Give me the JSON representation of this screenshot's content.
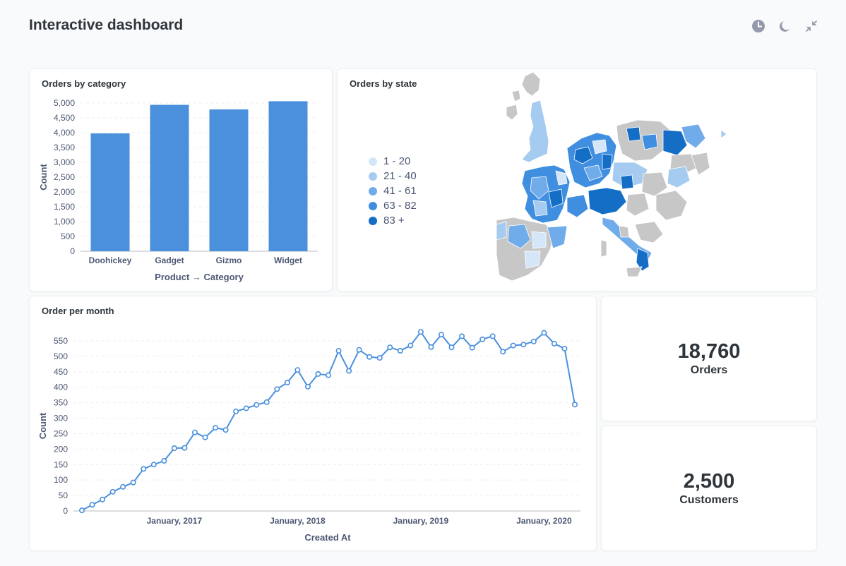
{
  "header": {
    "title": "Interactive dashboard",
    "icons": [
      "clock-icon",
      "moon-icon",
      "collapse-icon"
    ]
  },
  "colors": {
    "accent": "#4a90dd",
    "background": "#f9fafb",
    "map_scale": [
      "#d6e6f9",
      "#a6cbf1",
      "#71acea",
      "#3f8ee0",
      "#156ec6"
    ],
    "map_nodata": "#c7c7c7"
  },
  "cards": {
    "category": {
      "title": "Orders by category"
    },
    "state": {
      "title": "Orders by state",
      "legend": [
        "1 - 20",
        "21 - 40",
        "41 - 61",
        "63 - 82",
        "83 +"
      ]
    },
    "month": {
      "title": "Order per month"
    },
    "orders": {
      "value": "18,760",
      "label": "Orders"
    },
    "customers": {
      "value": "2,500",
      "label": "Customers"
    }
  },
  "chart_data": [
    {
      "type": "bar",
      "title": "Orders by category",
      "categories": [
        "Doohickey",
        "Gadget",
        "Gizmo",
        "Widget"
      ],
      "values": [
        3976,
        4939,
        4784,
        5061
      ],
      "xlabel": "Product → Category",
      "ylabel": "Count",
      "ylim": [
        0,
        5000
      ],
      "yticks": [
        0,
        500,
        1000,
        1500,
        2000,
        2500,
        3000,
        3500,
        4000,
        4500,
        5000
      ],
      "ytick_labels": [
        "0",
        "500",
        "1,000",
        "1,500",
        "2,000",
        "2,500",
        "3,000",
        "3,500",
        "4,000",
        "4,500",
        "5,000"
      ],
      "grid": true
    },
    {
      "type": "line",
      "title": "Order per month",
      "xlabel": "Created At",
      "ylabel": "Count",
      "x_tick_labels": [
        "January, 2017",
        "January, 2018",
        "January, 2019",
        "January, 2020"
      ],
      "x": [
        "2016-04",
        "2016-05",
        "2016-06",
        "2016-07",
        "2016-08",
        "2016-09",
        "2016-10",
        "2016-11",
        "2016-12",
        "2017-01",
        "2017-02",
        "2017-03",
        "2017-04",
        "2017-05",
        "2017-06",
        "2017-07",
        "2017-08",
        "2017-09",
        "2017-10",
        "2017-11",
        "2017-12",
        "2018-01",
        "2018-02",
        "2018-03",
        "2018-04",
        "2018-05",
        "2018-06",
        "2018-07",
        "2018-08",
        "2018-09",
        "2018-10",
        "2018-11",
        "2018-12",
        "2019-01",
        "2019-02",
        "2019-03",
        "2019-04",
        "2019-05",
        "2019-06",
        "2019-07",
        "2019-08",
        "2019-09",
        "2019-10",
        "2019-11",
        "2019-12",
        "2020-01",
        "2020-02",
        "2020-03",
        "2020-04"
      ],
      "values": [
        2,
        20,
        37,
        62,
        78,
        92,
        136,
        150,
        162,
        203,
        204,
        254,
        238,
        269,
        262,
        322,
        332,
        343,
        352,
        394,
        415,
        456,
        402,
        443,
        439,
        518,
        453,
        521,
        498,
        495,
        529,
        518,
        535,
        579,
        530,
        570,
        529,
        565,
        528,
        555,
        565,
        515,
        535,
        538,
        548,
        576,
        541,
        525,
        344
      ],
      "ylim": [
        0,
        550
      ],
      "yticks": [
        0,
        50,
        100,
        150,
        200,
        250,
        300,
        350,
        400,
        450,
        500,
        550
      ],
      "grid": true
    }
  ]
}
